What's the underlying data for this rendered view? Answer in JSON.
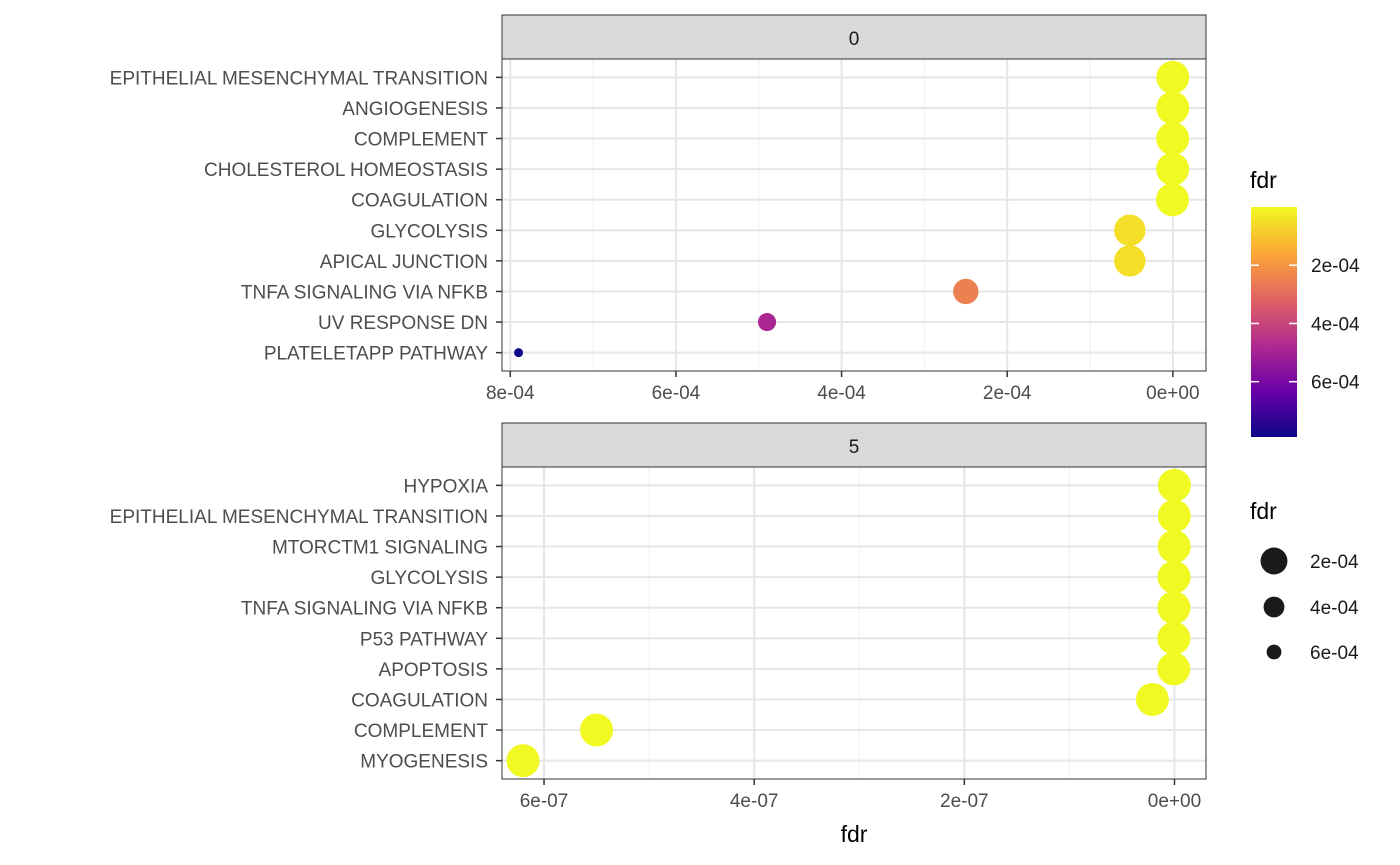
{
  "chart_data": {
    "type": "scatter",
    "xlabel": "fdr",
    "x_reversed": true,
    "panels": [
      {
        "strip": "0",
        "xlim": [
          0.00081,
          -4e-05
        ],
        "x_ticks": [
          0.0008,
          0.0006,
          0.0004,
          0.0002,
          0.0
        ],
        "x_tick_labels": [
          "8e-04",
          "6e-04",
          "4e-04",
          "2e-04",
          "0e+00"
        ],
        "categories": [
          "EPITHELIAL MESENCHYMAL TRANSITION",
          "ANGIOGENESIS",
          "COMPLEMENT",
          "CHOLESTEROL HOMEOSTASIS",
          "COAGULATION",
          "GLYCOLYSIS",
          "APICAL JUNCTION",
          "TNFA SIGNALING VIA NFKB",
          "UV RESPONSE DN",
          "PLATELETAPP PATHWAY"
        ],
        "values": [
          1e-07,
          1e-07,
          2e-07,
          3e-07,
          5e-07,
          5.2e-05,
          5.2e-05,
          0.00025,
          0.00049,
          0.00079
        ]
      },
      {
        "strip": "5",
        "xlim": [
          6.4e-07,
          -3e-08
        ],
        "x_ticks": [
          6e-07,
          4e-07,
          2e-07,
          0.0
        ],
        "x_tick_labels": [
          "6e-07",
          "4e-07",
          "2e-07",
          "0e+00"
        ],
        "categories": [
          "HYPOXIA",
          "EPITHELIAL MESENCHYMAL TRANSITION",
          "MTORCTM1 SIGNALING",
          "GLYCOLYSIS",
          "TNFA SIGNALING VIA NFKB",
          "P53 PATHWAY",
          "APOPTOSIS",
          "COAGULATION",
          "COMPLEMENT",
          "MYOGENESIS"
        ],
        "values": [
          1e-10,
          2e-10,
          3e-10,
          4e-10,
          5e-10,
          6e-10,
          7e-10,
          2.1e-08,
          5.5e-07,
          6.2e-07
        ]
      }
    ],
    "legend_color": {
      "title": "fdr",
      "tick_labels": [
        "2e-04",
        "4e-04",
        "6e-04"
      ],
      "tick_values": [
        0.0002,
        0.0004,
        0.0006
      ],
      "range": [
        0.00079,
        0.0
      ],
      "colors": [
        "#0d0887",
        "#6a00a8",
        "#b12a90",
        "#e16462",
        "#fca636",
        "#f0f921"
      ]
    },
    "legend_size": {
      "title": "fdr",
      "labels": [
        "2e-04",
        "4e-04",
        "6e-04"
      ],
      "values": [
        0.0002,
        0.0004,
        0.0006
      ]
    },
    "grid": true,
    "legend_position": "right"
  }
}
